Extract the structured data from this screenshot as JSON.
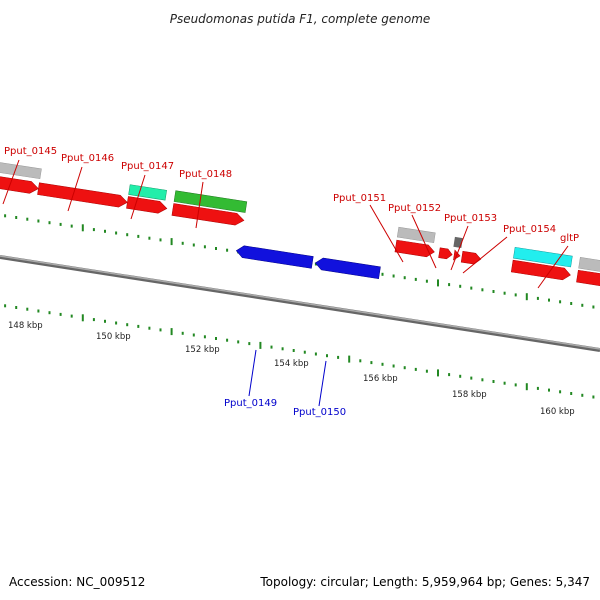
{
  "title": "Pseudomonas putida F1, complete genome",
  "footer": {
    "accession": "Accession: NC_009512",
    "summary": "Topology: circular; Length: 5,959,964 bp; Genes: 5,347"
  },
  "colors": {
    "forward_label": "#cc0000",
    "reverse_label": "#0000cc",
    "forward_cds": "#ee1111",
    "reverse_cds": "#1111dd",
    "gray_feature": "#bbbbbb",
    "cyan_feature": "#22eeee",
    "teal_feature": "#22eeaa",
    "green_feature": "#33bb33",
    "dark_feature": "#666666",
    "backbone": "#888888",
    "tick": "#228822"
  },
  "scale": {
    "labels": [
      {
        "text": "148 kbp",
        "kbp": 148
      },
      {
        "text": "150 kbp",
        "kbp": 150
      },
      {
        "text": "152 kbp",
        "kbp": 152
      },
      {
        "text": "154 kbp",
        "kbp": 154
      },
      {
        "text": "156 kbp",
        "kbp": 156
      },
      {
        "text": "158 kbp",
        "kbp": 158
      },
      {
        "text": "160 kbp",
        "kbp": 160
      }
    ]
  },
  "gene_labels": [
    {
      "text": "Pput_0145",
      "strand": "forward"
    },
    {
      "text": "Pput_0146",
      "strand": "forward"
    },
    {
      "text": "Pput_0147",
      "strand": "forward"
    },
    {
      "text": "Pput_0148",
      "strand": "forward"
    },
    {
      "text": "Pput_0149",
      "strand": "reverse"
    },
    {
      "text": "Pput_0150",
      "strand": "reverse"
    },
    {
      "text": "Pput_0151",
      "strand": "forward"
    },
    {
      "text": "Pput_0152",
      "strand": "forward"
    },
    {
      "text": "Pput_0153",
      "strand": "forward"
    },
    {
      "text": "Pput_0154",
      "strand": "forward"
    },
    {
      "text": "gltP",
      "strand": "forward"
    }
  ]
}
